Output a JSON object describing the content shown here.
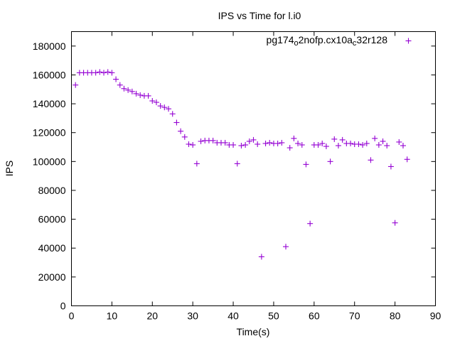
{
  "chart_data": {
    "type": "scatter",
    "title": "IPS vs Time for l.i0",
    "xlabel": "Time(s)",
    "ylabel": "IPS",
    "xlim": [
      0,
      90
    ],
    "ylim": [
      0,
      190000
    ],
    "xticks": [
      0,
      10,
      20,
      30,
      40,
      50,
      60,
      70,
      80,
      90
    ],
    "yticks": [
      0,
      20000,
      40000,
      60000,
      80000,
      100000,
      120000,
      140000,
      160000,
      180000
    ],
    "grid": false,
    "legend_position": "top-right",
    "series": [
      {
        "name_main": "pg174",
        "name_parts": [
          {
            "t": "pg174",
            "sub": false
          },
          {
            "t": "o",
            "sub": true
          },
          {
            "t": "2nofp.cx10a",
            "sub": false
          },
          {
            "t": "c",
            "sub": true
          },
          {
            "t": "32r128",
            "sub": false
          }
        ],
        "color": "#9400d3",
        "marker": "plus",
        "points": [
          [
            1,
            153000
          ],
          [
            2,
            161500
          ],
          [
            3,
            161500
          ],
          [
            4,
            161500
          ],
          [
            5,
            161500
          ],
          [
            6,
            161500
          ],
          [
            7,
            162000
          ],
          [
            8,
            161500
          ],
          [
            9,
            162000
          ],
          [
            10,
            161500
          ],
          [
            11,
            157000
          ],
          [
            12,
            153000
          ],
          [
            13,
            150500
          ],
          [
            14,
            149500
          ],
          [
            15,
            148500
          ],
          [
            16,
            147000
          ],
          [
            17,
            146000
          ],
          [
            18,
            145500
          ],
          [
            19,
            145500
          ],
          [
            20,
            142000
          ],
          [
            21,
            141000
          ],
          [
            22,
            138500
          ],
          [
            23,
            137500
          ],
          [
            24,
            136500
          ],
          [
            25,
            133000
          ],
          [
            26,
            127000
          ],
          [
            27,
            121000
          ],
          [
            28,
            117000
          ],
          [
            29,
            112000
          ],
          [
            30,
            111500
          ],
          [
            31,
            98500
          ],
          [
            32,
            114000
          ],
          [
            33,
            114500
          ],
          [
            34,
            114500
          ],
          [
            35,
            114500
          ],
          [
            36,
            113000
          ],
          [
            37,
            113000
          ],
          [
            38,
            113000
          ],
          [
            39,
            111500
          ],
          [
            40,
            111500
          ],
          [
            41,
            98500
          ],
          [
            42,
            111000
          ],
          [
            43,
            111500
          ],
          [
            44,
            114000
          ],
          [
            45,
            115000
          ],
          [
            46,
            112000
          ],
          [
            47,
            34000
          ],
          [
            48,
            112500
          ],
          [
            49,
            113000
          ],
          [
            50,
            112500
          ],
          [
            51,
            112500
          ],
          [
            52,
            113000
          ],
          [
            53,
            41000
          ],
          [
            54,
            109500
          ],
          [
            55,
            116000
          ],
          [
            56,
            112500
          ],
          [
            57,
            111500
          ],
          [
            58,
            98000
          ],
          [
            59,
            57000
          ],
          [
            60,
            111500
          ],
          [
            61,
            111500
          ],
          [
            62,
            112500
          ],
          [
            63,
            110500
          ],
          [
            64,
            100000
          ],
          [
            65,
            115500
          ],
          [
            66,
            111000
          ],
          [
            67,
            115000
          ],
          [
            68,
            112500
          ],
          [
            69,
            112500
          ],
          [
            70,
            112000
          ],
          [
            71,
            112000
          ],
          [
            72,
            111500
          ],
          [
            73,
            112500
          ],
          [
            74,
            101000
          ],
          [
            75,
            116000
          ],
          [
            76,
            111500
          ],
          [
            77,
            114000
          ],
          [
            78,
            111000
          ],
          [
            79,
            96500
          ],
          [
            80,
            57500
          ],
          [
            81,
            113500
          ],
          [
            82,
            111000
          ],
          [
            83,
            101500
          ]
        ]
      }
    ]
  }
}
